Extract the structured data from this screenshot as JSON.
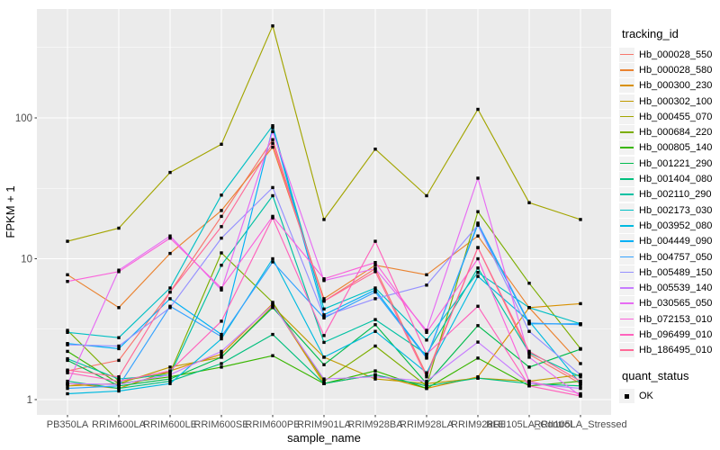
{
  "figure": {
    "y_axis_title": "FPKM + 1",
    "x_axis_title": "sample_name",
    "legend_title": "tracking_id",
    "quant_legend_title": "quant_status",
    "quant_legend_items": [
      {
        "label": "OK"
      }
    ],
    "colors": {
      "panel_bg": "#EBEBEB",
      "grid_major": "#FFFFFF",
      "grid_minor": "#FFFFFF",
      "tick_text": "#4D4D4D",
      "axis_title": "#000000",
      "point": "#000000",
      "legend_key_bg": "#F2F2F2"
    }
  },
  "chart_data": {
    "type": "line",
    "title": "",
    "xlabel": "sample_name",
    "ylabel": "FPKM + 1",
    "y_scale": "log10",
    "y_ticks": [
      1,
      10,
      100
    ],
    "y_minor_ticks": [
      3.162,
      31.62,
      316.2
    ],
    "ylim": [
      0.77,
      590
    ],
    "grid": true,
    "legend_position": "right",
    "point_marker": "black-square",
    "quant_status_value": "OK",
    "categories": [
      "PB350LA",
      "RRIM600LA",
      "RRIM600LE",
      "RRIM600SE",
      "RRIM600PE",
      "RRIM901LA",
      "RRIM928BA",
      "RRIM928LA",
      "RRIM928LE",
      "RRII105LA_Control",
      "RRII105LA_Stressed"
    ],
    "series": [
      {
        "name": "Hb_000028_550",
        "color": "#F8766D",
        "values": [
          1.6,
          1.9,
          5.8,
          20,
          70,
          5.0,
          8.5,
          1.5,
          12,
          2.1,
          1.3
        ]
      },
      {
        "name": "Hb_000028_580",
        "color": "#EA8331",
        "values": [
          7.7,
          4.5,
          10.9,
          22,
          62,
          5.2,
          9.0,
          7.7,
          14.5,
          4.5,
          1.8
        ]
      },
      {
        "name": "Hb_000300_230",
        "color": "#D89000",
        "values": [
          1.3,
          1.2,
          1.6,
          2.1,
          4.8,
          1.3,
          1.5,
          1.2,
          1.45,
          4.5,
          4.8
        ]
      },
      {
        "name": "Hb_000302_100",
        "color": "#C09B00",
        "values": [
          1.25,
          1.3,
          1.7,
          2.0,
          4.6,
          2.0,
          1.4,
          1.3,
          1.42,
          1.35,
          1.5
        ]
      },
      {
        "name": "Hb_000455_070",
        "color": "#A3A500",
        "values": [
          13.3,
          16.5,
          41,
          65,
          450,
          19,
          60,
          28,
          115,
          25,
          19
        ]
      },
      {
        "name": "Hb_000684_220",
        "color": "#7CAE00",
        "values": [
          3.1,
          1.35,
          1.55,
          11,
          4.9,
          1.35,
          2.4,
          1.25,
          21.6,
          6.7,
          2.3
        ]
      },
      {
        "name": "Hb_000805_140",
        "color": "#39B600",
        "values": [
          2.2,
          1.3,
          1.45,
          1.7,
          2.05,
          1.3,
          1.6,
          1.2,
          1.97,
          1.25,
          1.35
        ]
      },
      {
        "name": "Hb_001221_290",
        "color": "#00BB4E",
        "values": [
          1.9,
          1.25,
          1.4,
          2.0,
          4.5,
          1.77,
          3.4,
          1.3,
          3.35,
          1.7,
          2.28
        ]
      },
      {
        "name": "Hb_001404_080",
        "color": "#00BF7D",
        "values": [
          1.35,
          1.2,
          1.35,
          1.8,
          2.9,
          1.3,
          1.5,
          1.25,
          1.42,
          1.3,
          1.25
        ]
      },
      {
        "name": "Hb_002110_290",
        "color": "#00C1A3",
        "values": [
          1.95,
          1.4,
          1.5,
          9.0,
          28,
          2.55,
          3.7,
          2.1,
          8.6,
          2.15,
          1.45
        ]
      },
      {
        "name": "Hb_002173_030",
        "color": "#00BFC4",
        "values": [
          3.0,
          2.75,
          6.2,
          28.3,
          88,
          4.4,
          6.2,
          2.65,
          8.0,
          4.5,
          3.45
        ]
      },
      {
        "name": "Hb_003952_080",
        "color": "#00BAE0",
        "values": [
          1.1,
          1.15,
          1.3,
          2.7,
          10,
          2.0,
          3.05,
          1.55,
          7.5,
          3.6,
          1.3
        ]
      },
      {
        "name": "Hb_004449_090",
        "color": "#00B0F6",
        "values": [
          2.5,
          2.3,
          5.2,
          2.9,
          85,
          4.0,
          6.0,
          2.0,
          17.5,
          3.45,
          3.45
        ]
      },
      {
        "name": "Hb_004757_050",
        "color": "#35A2FF",
        "values": [
          1.2,
          1.25,
          4.6,
          2.8,
          9.5,
          3.8,
          5.8,
          1.97,
          17.9,
          3.5,
          3.4
        ]
      },
      {
        "name": "Hb_005489_150",
        "color": "#9590FF",
        "values": [
          2.45,
          2.4,
          4.5,
          14,
          32,
          3.9,
          5.2,
          6.5,
          17.3,
          3.05,
          1.5
        ]
      },
      {
        "name": "Hb_005539_140",
        "color": "#C77CFF",
        "values": [
          1.3,
          1.28,
          1.5,
          2.2,
          4.7,
          1.4,
          1.45,
          1.35,
          2.56,
          1.3,
          1.2
        ]
      },
      {
        "name": "Hb_030565_050",
        "color": "#E76BF3",
        "values": [
          1.28,
          8.3,
          14.5,
          6.0,
          80,
          7.0,
          8.5,
          3.1,
          37.3,
          2.0,
          1.06
        ]
      },
      {
        "name": "Hb_072153_010",
        "color": "#FA62DB",
        "values": [
          6.9,
          8.1,
          14.0,
          6.2,
          20,
          7.2,
          9.4,
          3.0,
          10,
          1.35,
          1.1
        ]
      },
      {
        "name": "Hb_096499_010",
        "color": "#FF62BC",
        "values": [
          1.55,
          1.35,
          1.6,
          3.6,
          19.5,
          2.85,
          13.3,
          2.1,
          4.6,
          1.25,
          1.06
        ]
      },
      {
        "name": "Hb_186495_010",
        "color": "#FF6A98",
        "values": [
          1.62,
          1.45,
          5.8,
          16.9,
          66,
          5.0,
          8.1,
          1.45,
          12,
          2.2,
          1.35
        ]
      }
    ]
  }
}
